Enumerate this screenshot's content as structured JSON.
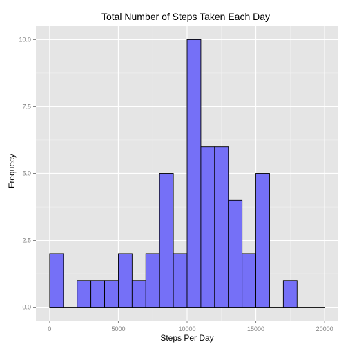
{
  "chart_data": {
    "type": "bar",
    "title": "Total Number of Steps Taken Each Day",
    "xlabel": "Steps Per Day",
    "ylabel": "Frequecy",
    "bin_width": 1000,
    "bin_starts": [
      0,
      1000,
      2000,
      3000,
      4000,
      5000,
      6000,
      7000,
      8000,
      9000,
      10000,
      11000,
      12000,
      13000,
      14000,
      15000,
      16000,
      17000,
      18000,
      19000
    ],
    "values": [
      2,
      0,
      1,
      1,
      1,
      2,
      1,
      2,
      5,
      2,
      10,
      6,
      6,
      4,
      2,
      5,
      0,
      1,
      0,
      0
    ],
    "xlim": [
      -1000,
      21000
    ],
    "ylim": [
      -0.5,
      10.5
    ],
    "x_ticks": [
      0,
      5000,
      10000,
      15000,
      20000
    ],
    "x_tick_labels": [
      "0",
      "5000",
      "10000",
      "15000",
      "20000"
    ],
    "y_ticks": [
      0,
      2.5,
      5,
      7.5,
      10
    ],
    "y_tick_labels": [
      "0.0",
      "2.5",
      "5.0",
      "7.5",
      "10.0"
    ],
    "grid": true,
    "legend": "none",
    "colors": {
      "bar_fill": "#7570f7",
      "bar_stroke": "#000000",
      "panel_bg": "#e5e5e5",
      "grid_major": "#ffffff",
      "grid_minor": "#f2f2f2",
      "tick_text": "#7f7f7f",
      "title_text": "#000000"
    }
  }
}
